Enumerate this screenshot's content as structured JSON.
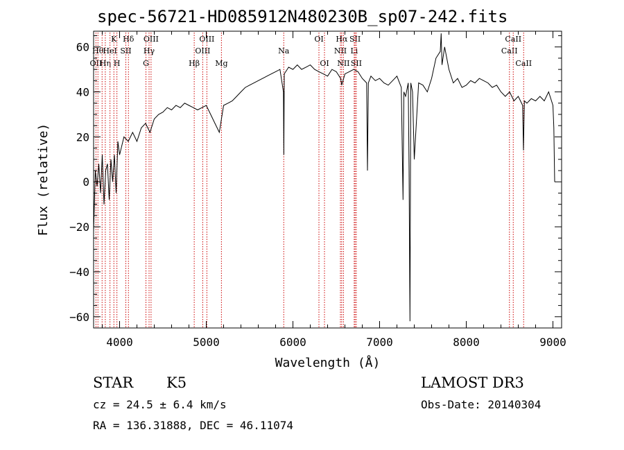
{
  "title": "spec-56721-HD085912N480230B_sp07-242.fits",
  "info": {
    "object_class": "STAR",
    "subclass": "K5",
    "survey": "LAMOST DR3",
    "cz": "cz = 24.5 ± 6.4 km/s",
    "obs_date": "Obs-Date: 20140304",
    "radec": "RA = 136.31888, DEC =  46.11074"
  },
  "chart_data": {
    "type": "line",
    "title": "spec-56721-HD085912N480230B_sp07-242.fits",
    "xlabel": "Wavelength (Å)",
    "ylabel": "Flux (relative)",
    "xlim": [
      3700,
      9100
    ],
    "ylim": [
      -65,
      67
    ],
    "grid": false,
    "legend": "none",
    "colors": {
      "line": "#000000",
      "markers": "#cc0000",
      "axes": "#000000"
    },
    "x_ticks": [
      4000,
      5000,
      6000,
      7000,
      8000,
      9000
    ],
    "x_tick_labels": [
      "4000",
      "5000",
      "6000",
      "7000",
      "8000",
      "9000"
    ],
    "y_ticks": [
      -60,
      -40,
      -20,
      0,
      20,
      40,
      60
    ],
    "y_tick_labels": [
      "−60",
      "−40",
      "−20",
      "0",
      "20",
      "40",
      "60"
    ],
    "series": [
      {
        "x": [
          3700,
          3720,
          3740,
          3760,
          3780,
          3800,
          3820,
          3840,
          3860,
          3880,
          3900,
          3920,
          3940,
          3960,
          3980,
          4000,
          4050,
          4100,
          4150,
          4200,
          4250,
          4300,
          4350,
          4400,
          4450,
          4500,
          4550,
          4600,
          4650,
          4700,
          4750,
          4800,
          4850,
          4900,
          4950,
          5000,
          5050,
          5100,
          5150,
          5200,
          5250,
          5300,
          5350,
          5400,
          5450,
          5500,
          5550,
          5600,
          5650,
          5700,
          5750,
          5800,
          5850,
          5890,
          5895,
          5900,
          5950,
          6000,
          6050,
          6100,
          6150,
          6200,
          6250,
          6300,
          6350,
          6400,
          6450,
          6500,
          6550,
          6563,
          6600,
          6650,
          6700,
          6750,
          6800,
          6850,
          6860,
          6870,
          6900,
          6950,
          7000,
          7050,
          7100,
          7150,
          7200,
          7250,
          7270,
          7280,
          7300,
          7330,
          7340,
          7350,
          7360,
          7380,
          7400,
          7450,
          7500,
          7550,
          7600,
          7650,
          7700,
          7710,
          7720,
          7750,
          7800,
          7850,
          7900,
          7950,
          8000,
          8050,
          8100,
          8150,
          8200,
          8250,
          8300,
          8350,
          8400,
          8450,
          8500,
          8550,
          8600,
          8650,
          8660,
          8670,
          8700,
          8750,
          8800,
          8850,
          8900,
          8950,
          9000,
          9010,
          9020
        ],
        "y": [
          -22,
          5,
          -2,
          8,
          -5,
          12,
          -10,
          5,
          8,
          -8,
          10,
          0,
          12,
          -5,
          18,
          12,
          20,
          18,
          22,
          18,
          24,
          26,
          22,
          28,
          30,
          31,
          33,
          32,
          34,
          33,
          35,
          34,
          33,
          32,
          33,
          34,
          30,
          26,
          22,
          34,
          35,
          36,
          38,
          40,
          42,
          43,
          44,
          45,
          46,
          47,
          48,
          49,
          50,
          40,
          12,
          48,
          51,
          50,
          52,
          50,
          51,
          52,
          50,
          49,
          48,
          47,
          50,
          49,
          46,
          43,
          48,
          49,
          50,
          49,
          46,
          44,
          5,
          44,
          47,
          45,
          46,
          44,
          43,
          45,
          47,
          42,
          -8,
          40,
          38,
          44,
          5,
          -62,
          44,
          40,
          10,
          44,
          43,
          40,
          46,
          55,
          58,
          66,
          52,
          60,
          50,
          44,
          46,
          42,
          43,
          45,
          44,
          46,
          45,
          44,
          42,
          43,
          40,
          38,
          40,
          36,
          38,
          34,
          14,
          36,
          35,
          37,
          36,
          38,
          36,
          40,
          34,
          24,
          0
        ]
      }
    ],
    "line_markers": [
      {
        "x": 3727,
        "label": "OII",
        "row": 2
      },
      {
        "x": 3750,
        "label": "Hθ",
        "row": 1
      },
      {
        "x": 3798,
        "label": "",
        "row": 0
      },
      {
        "x": 3835,
        "label": "Hη",
        "row": 2
      },
      {
        "x": 3889,
        "label": "HeI",
        "row": 1
      },
      {
        "x": 3934,
        "label": "K",
        "row": 0
      },
      {
        "x": 3969,
        "label": "H",
        "row": 2
      },
      {
        "x": 4072,
        "label": "SII",
        "row": 1
      },
      {
        "x": 4102,
        "label": "Hδ",
        "row": 0
      },
      {
        "x": 4304,
        "label": "G",
        "row": 2
      },
      {
        "x": 4340,
        "label": "Hγ",
        "row": 1
      },
      {
        "x": 4363,
        "label": "OIII",
        "row": 0
      },
      {
        "x": 4861,
        "label": "Hβ",
        "row": 2
      },
      {
        "x": 4959,
        "label": "OIII",
        "row": 1
      },
      {
        "x": 5007,
        "label": "OIII",
        "row": 0
      },
      {
        "x": 5175,
        "label": "Mg",
        "row": 2
      },
      {
        "x": 5894,
        "label": "Na",
        "row": 1
      },
      {
        "x": 6300,
        "label": "OI",
        "row": 0
      },
      {
        "x": 6364,
        "label": "OI",
        "row": 2
      },
      {
        "x": 6548,
        "label": "NII",
        "row": 1
      },
      {
        "x": 6563,
        "label": "Hα",
        "row": 0
      },
      {
        "x": 6583,
        "label": "NII",
        "row": 2
      },
      {
        "x": 6707,
        "label": "Li",
        "row": 1
      },
      {
        "x": 6717,
        "label": "SII",
        "row": 0
      },
      {
        "x": 6731,
        "label": "SII",
        "row": 2
      },
      {
        "x": 8498,
        "label": "CaII",
        "row": 1
      },
      {
        "x": 8542,
        "label": "CaII",
        "row": 0
      },
      {
        "x": 8662,
        "label": "CaII",
        "row": 2
      }
    ]
  }
}
